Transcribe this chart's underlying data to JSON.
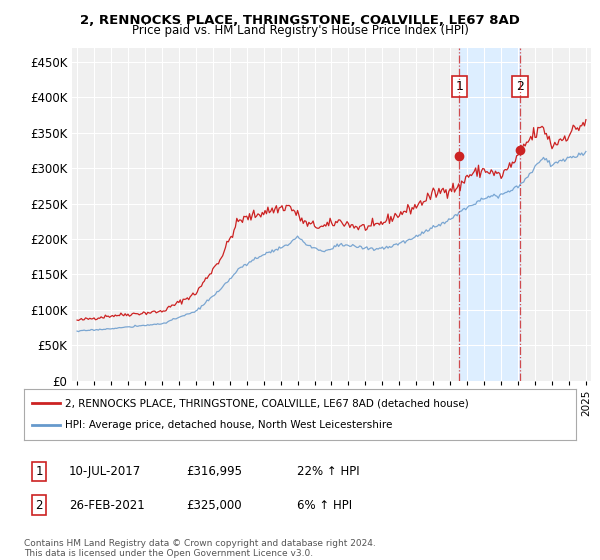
{
  "title1": "2, RENNOCKS PLACE, THRINGSTONE, COALVILLE, LE67 8AD",
  "title2": "Price paid vs. HM Land Registry's House Price Index (HPI)",
  "ylabel_ticks": [
    "£0",
    "£50K",
    "£100K",
    "£150K",
    "£200K",
    "£250K",
    "£300K",
    "£350K",
    "£400K",
    "£450K"
  ],
  "ytick_vals": [
    0,
    50000,
    100000,
    150000,
    200000,
    250000,
    300000,
    350000,
    400000,
    450000
  ],
  "ylim": [
    0,
    470000
  ],
  "xlim_start": 1994.7,
  "xlim_end": 2025.3,
  "line1_color": "#cc2222",
  "line2_color": "#6699cc",
  "sale1_x": 2017.53,
  "sale1_y": 316995,
  "sale2_x": 2021.12,
  "sale2_y": 325000,
  "vline_color": "#cc2222",
  "highlight_bg": "#ddeeff",
  "legend1_label": "2, RENNOCKS PLACE, THRINGSTONE, COALVILLE, LE67 8AD (detached house)",
  "legend2_label": "HPI: Average price, detached house, North West Leicestershire",
  "table_rows": [
    {
      "num": "1",
      "date": "10-JUL-2017",
      "price": "£316,995",
      "change": "22% ↑ HPI"
    },
    {
      "num": "2",
      "date": "26-FEB-2021",
      "price": "£325,000",
      "change": "6% ↑ HPI"
    }
  ],
  "footer": "Contains HM Land Registry data © Crown copyright and database right 2024.\nThis data is licensed under the Open Government Licence v3.0.",
  "bg_color": "#ffffff",
  "plot_bg_color": "#f0f0f0",
  "grid_color": "#ffffff"
}
